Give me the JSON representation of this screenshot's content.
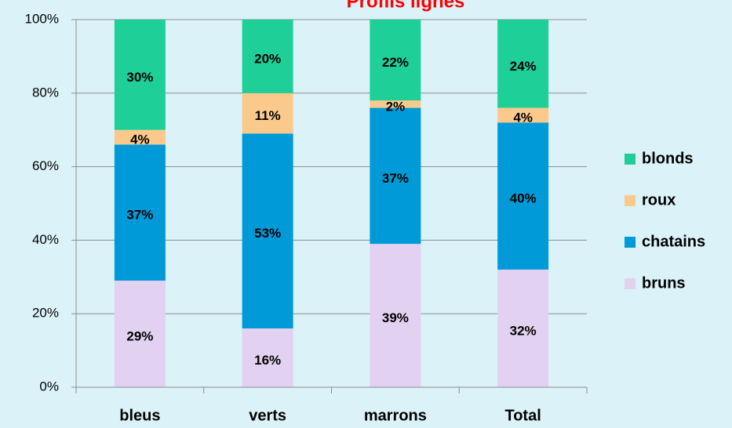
{
  "chart_data": {
    "type": "stacked_bar",
    "title": "Profils lignes",
    "categories": [
      "bleus",
      "verts",
      "marrons",
      "Total"
    ],
    "series": [
      {
        "name": "bruns",
        "color": "#e2d1f1",
        "values": [
          29,
          16,
          39,
          32
        ],
        "value_labels": [
          "29%",
          "16%",
          "39%",
          "32%"
        ]
      },
      {
        "name": "chatains",
        "color": "#009ad8",
        "values": [
          37,
          53,
          37,
          40
        ],
        "value_labels": [
          "37%",
          "53%",
          "37%",
          "40%"
        ]
      },
      {
        "name": "roux",
        "color": "#fbc98b",
        "values": [
          4,
          11,
          2,
          4
        ],
        "value_labels": [
          "4%",
          "11%",
          "2%",
          "4%"
        ]
      },
      {
        "name": "blonds",
        "color": "#1fcf98",
        "values": [
          30,
          20,
          22,
          24
        ],
        "value_labels": [
          "30%",
          "20%",
          "22%",
          "24%"
        ]
      }
    ],
    "ylim": [
      0,
      100
    ],
    "yticks": [
      {
        "value": 0,
        "label": "0%"
      },
      {
        "value": 20,
        "label": "20%"
      },
      {
        "value": 40,
        "label": "40%"
      },
      {
        "value": 60,
        "label": "60%"
      },
      {
        "value": 80,
        "label": "80%"
      },
      {
        "value": 100,
        "label": "100%"
      }
    ],
    "grid": true,
    "legend": "right"
  }
}
